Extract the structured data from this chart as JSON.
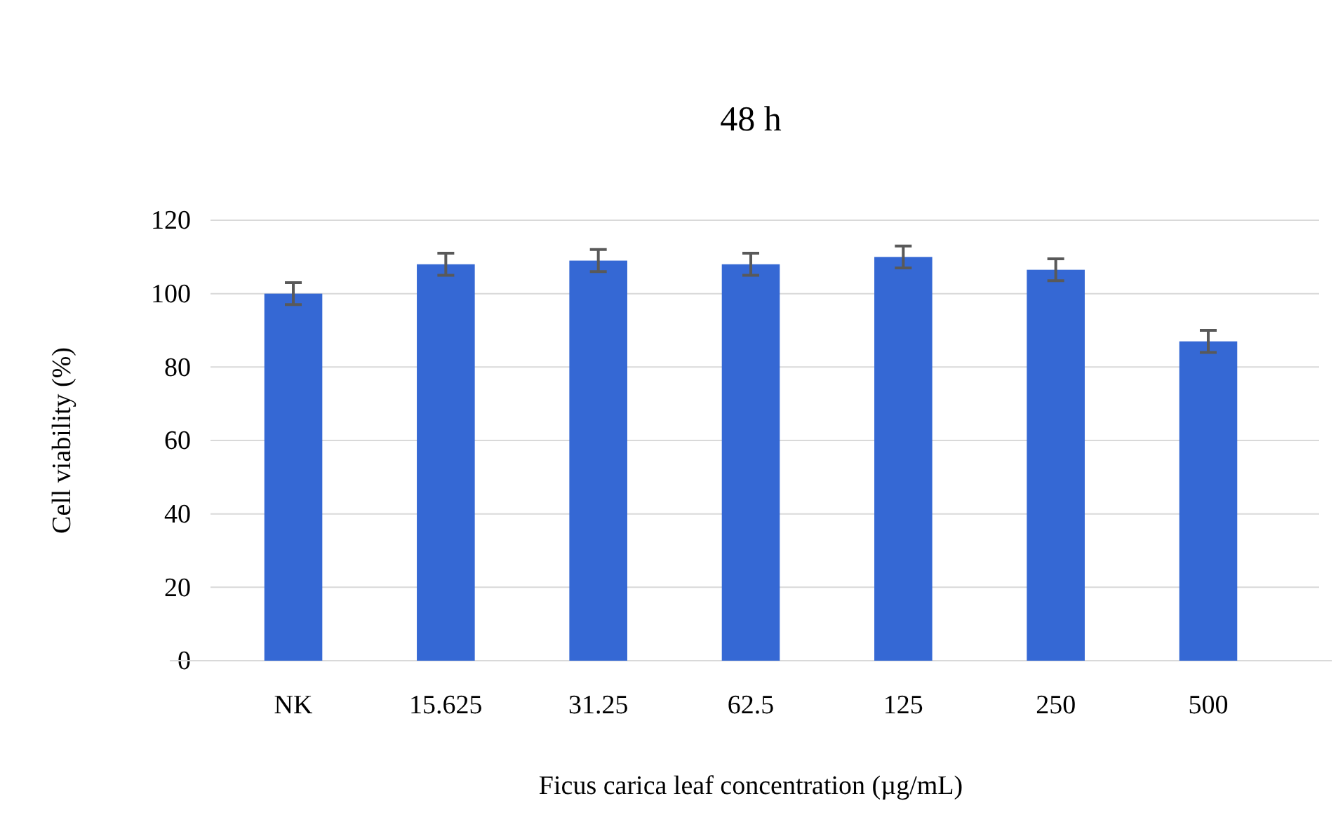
{
  "chart_data": {
    "type": "bar",
    "title": "48 h",
    "xlabel": "Ficus carica leaf concentration (µg/mL)",
    "ylabel": "Cell viability (%)",
    "categories": [
      "NK",
      "15.625",
      "31.25",
      "62.5",
      "125",
      "250",
      "500"
    ],
    "values": [
      100,
      108,
      109,
      108,
      110,
      106.5,
      87
    ],
    "errors": [
      3,
      3,
      3,
      3,
      3,
      3,
      3
    ],
    "color": "#3568d4",
    "ylim": [
      0,
      120
    ],
    "yticks": [
      0,
      20,
      40,
      60,
      80,
      100,
      120
    ],
    "grid": "y"
  }
}
